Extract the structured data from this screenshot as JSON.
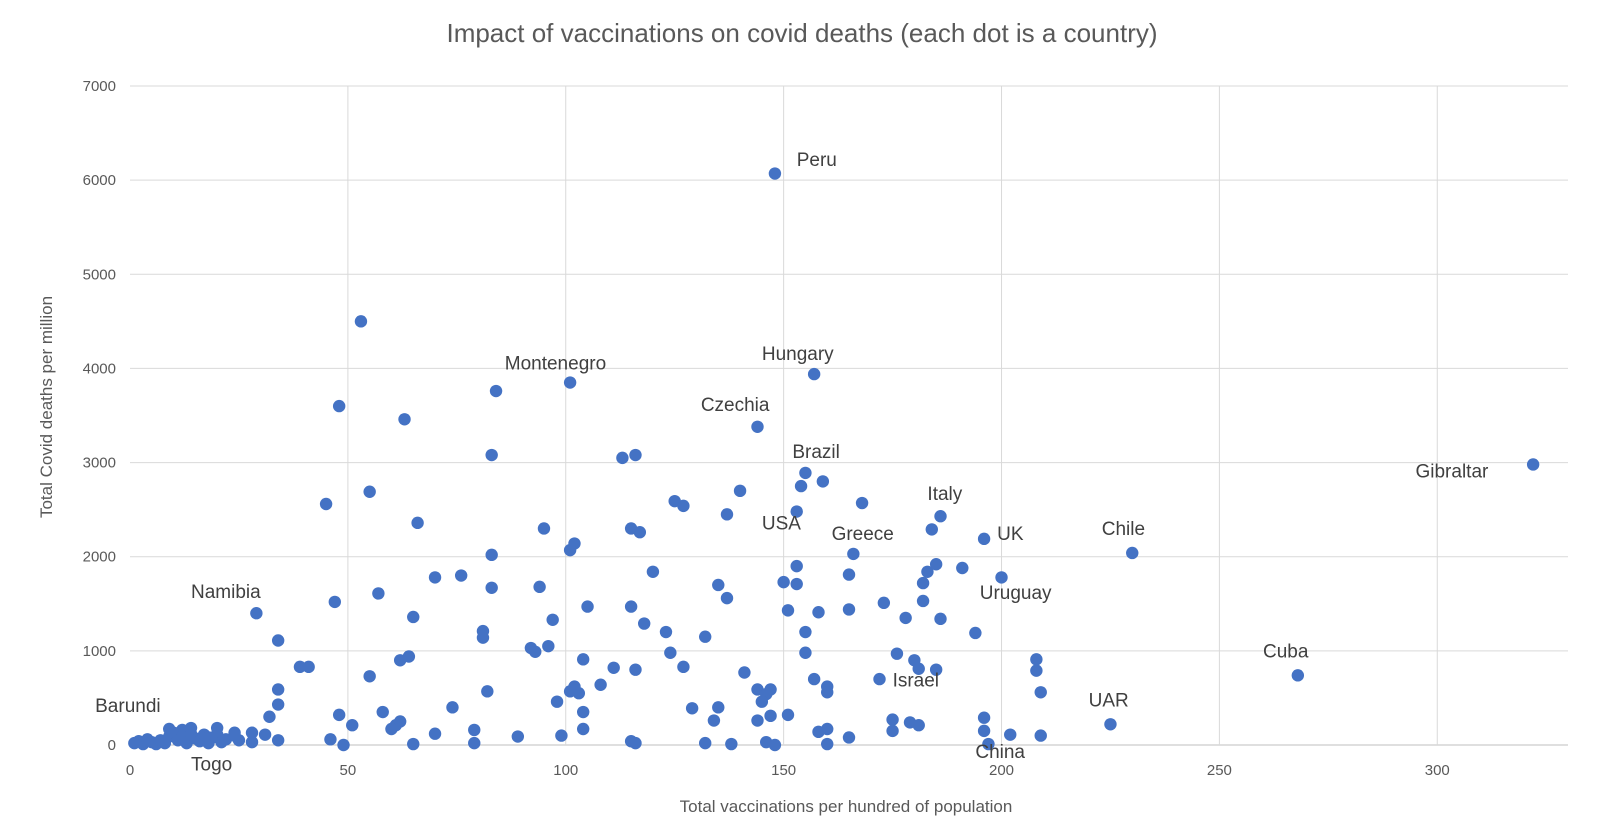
{
  "chart_data": {
    "type": "scatter",
    "title": "Impact of vaccinations on covid deaths (each dot is a country)",
    "xlabel": "Total vaccinations per hundred of population",
    "ylabel": "Total Covid deaths per million",
    "xlim": [
      0,
      330
    ],
    "ylim": [
      0,
      7000
    ],
    "x_ticks": [
      0,
      50,
      100,
      150,
      200,
      250,
      300
    ],
    "y_ticks": [
      0,
      1000,
      2000,
      3000,
      4000,
      5000,
      6000,
      7000
    ],
    "grid": true,
    "color": "#4472C4",
    "points": [
      {
        "x": 148,
        "y": 6070
      },
      {
        "x": 53,
        "y": 4500
      },
      {
        "x": 101,
        "y": 3850
      },
      {
        "x": 84,
        "y": 3760
      },
      {
        "x": 157,
        "y": 3940
      },
      {
        "x": 48,
        "y": 3600
      },
      {
        "x": 63,
        "y": 3460
      },
      {
        "x": 144,
        "y": 3380
      },
      {
        "x": 83,
        "y": 3080
      },
      {
        "x": 113,
        "y": 3050
      },
      {
        "x": 116,
        "y": 3080
      },
      {
        "x": 322,
        "y": 2980
      },
      {
        "x": 155,
        "y": 2890
      },
      {
        "x": 154,
        "y": 2750
      },
      {
        "x": 159,
        "y": 2800
      },
      {
        "x": 55,
        "y": 2690
      },
      {
        "x": 140,
        "y": 2700
      },
      {
        "x": 45,
        "y": 2560
      },
      {
        "x": 125,
        "y": 2590
      },
      {
        "x": 127,
        "y": 2540
      },
      {
        "x": 168,
        "y": 2570
      },
      {
        "x": 153,
        "y": 2480
      },
      {
        "x": 137,
        "y": 2450
      },
      {
        "x": 186,
        "y": 2430
      },
      {
        "x": 66,
        "y": 2360
      },
      {
        "x": 95,
        "y": 2300
      },
      {
        "x": 115,
        "y": 2300
      },
      {
        "x": 117,
        "y": 2260
      },
      {
        "x": 184,
        "y": 2290
      },
      {
        "x": 196,
        "y": 2190
      },
      {
        "x": 102,
        "y": 2140
      },
      {
        "x": 101,
        "y": 2070
      },
      {
        "x": 83,
        "y": 2020
      },
      {
        "x": 166,
        "y": 2030
      },
      {
        "x": 230,
        "y": 2040
      },
      {
        "x": 153,
        "y": 1900
      },
      {
        "x": 185,
        "y": 1920
      },
      {
        "x": 191,
        "y": 1880
      },
      {
        "x": 120,
        "y": 1840
      },
      {
        "x": 183,
        "y": 1840
      },
      {
        "x": 165,
        "y": 1810
      },
      {
        "x": 70,
        "y": 1780
      },
      {
        "x": 76,
        "y": 1800
      },
      {
        "x": 200,
        "y": 1780
      },
      {
        "x": 150,
        "y": 1730
      },
      {
        "x": 153,
        "y": 1710
      },
      {
        "x": 182,
        "y": 1720
      },
      {
        "x": 135,
        "y": 1700
      },
      {
        "x": 94,
        "y": 1680
      },
      {
        "x": 83,
        "y": 1670
      },
      {
        "x": 57,
        "y": 1610
      },
      {
        "x": 137,
        "y": 1560
      },
      {
        "x": 47,
        "y": 1520
      },
      {
        "x": 173,
        "y": 1510
      },
      {
        "x": 182,
        "y": 1530
      },
      {
        "x": 105,
        "y": 1470
      },
      {
        "x": 115,
        "y": 1470
      },
      {
        "x": 151,
        "y": 1430
      },
      {
        "x": 165,
        "y": 1440
      },
      {
        "x": 29,
        "y": 1400
      },
      {
        "x": 158,
        "y": 1410
      },
      {
        "x": 65,
        "y": 1360
      },
      {
        "x": 97,
        "y": 1330
      },
      {
        "x": 178,
        "y": 1350
      },
      {
        "x": 186,
        "y": 1340
      },
      {
        "x": 118,
        "y": 1290
      },
      {
        "x": 81,
        "y": 1210
      },
      {
        "x": 123,
        "y": 1200
      },
      {
        "x": 155,
        "y": 1200
      },
      {
        "x": 194,
        "y": 1190
      },
      {
        "x": 81,
        "y": 1140
      },
      {
        "x": 132,
        "y": 1150
      },
      {
        "x": 34,
        "y": 1110
      },
      {
        "x": 96,
        "y": 1050
      },
      {
        "x": 92,
        "y": 1030
      },
      {
        "x": 93,
        "y": 990
      },
      {
        "x": 124,
        "y": 980
      },
      {
        "x": 155,
        "y": 980
      },
      {
        "x": 176,
        "y": 970
      },
      {
        "x": 64,
        "y": 940
      },
      {
        "x": 62,
        "y": 900
      },
      {
        "x": 104,
        "y": 910
      },
      {
        "x": 180,
        "y": 900
      },
      {
        "x": 208,
        "y": 910
      },
      {
        "x": 39,
        "y": 830
      },
      {
        "x": 41,
        "y": 830
      },
      {
        "x": 111,
        "y": 820
      },
      {
        "x": 127,
        "y": 830
      },
      {
        "x": 116,
        "y": 800
      },
      {
        "x": 181,
        "y": 810
      },
      {
        "x": 185,
        "y": 800
      },
      {
        "x": 208,
        "y": 790
      },
      {
        "x": 141,
        "y": 770
      },
      {
        "x": 268,
        "y": 740
      },
      {
        "x": 55,
        "y": 730
      },
      {
        "x": 157,
        "y": 700
      },
      {
        "x": 172,
        "y": 700
      },
      {
        "x": 108,
        "y": 640
      },
      {
        "x": 102,
        "y": 620
      },
      {
        "x": 160,
        "y": 620
      },
      {
        "x": 34,
        "y": 590
      },
      {
        "x": 144,
        "y": 590
      },
      {
        "x": 147,
        "y": 590
      },
      {
        "x": 101,
        "y": 570
      },
      {
        "x": 82,
        "y": 570
      },
      {
        "x": 103,
        "y": 550
      },
      {
        "x": 146,
        "y": 540
      },
      {
        "x": 160,
        "y": 560
      },
      {
        "x": 209,
        "y": 560
      },
      {
        "x": 145,
        "y": 460
      },
      {
        "x": 98,
        "y": 460
      },
      {
        "x": 34,
        "y": 430
      },
      {
        "x": 74,
        "y": 400
      },
      {
        "x": 129,
        "y": 390
      },
      {
        "x": 135,
        "y": 400
      },
      {
        "x": 58,
        "y": 350
      },
      {
        "x": 104,
        "y": 350
      },
      {
        "x": 32,
        "y": 300
      },
      {
        "x": 48,
        "y": 320
      },
      {
        "x": 147,
        "y": 310
      },
      {
        "x": 151,
        "y": 320
      },
      {
        "x": 196,
        "y": 290
      },
      {
        "x": 62,
        "y": 250
      },
      {
        "x": 134,
        "y": 260
      },
      {
        "x": 144,
        "y": 260
      },
      {
        "x": 175,
        "y": 270
      },
      {
        "x": 179,
        "y": 240
      },
      {
        "x": 181,
        "y": 210
      },
      {
        "x": 225,
        "y": 220
      },
      {
        "x": 51,
        "y": 210
      },
      {
        "x": 61,
        "y": 210
      },
      {
        "x": 60,
        "y": 170
      },
      {
        "x": 79,
        "y": 160
      },
      {
        "x": 104,
        "y": 170
      },
      {
        "x": 160,
        "y": 170
      },
      {
        "x": 175,
        "y": 150
      },
      {
        "x": 158,
        "y": 140
      },
      {
        "x": 196,
        "y": 150
      },
      {
        "x": 31,
        "y": 110
      },
      {
        "x": 70,
        "y": 120
      },
      {
        "x": 89,
        "y": 90
      },
      {
        "x": 99,
        "y": 100
      },
      {
        "x": 165,
        "y": 80
      },
      {
        "x": 202,
        "y": 110
      },
      {
        "x": 209,
        "y": 100
      },
      {
        "x": 46,
        "y": 60
      },
      {
        "x": 34,
        "y": 50
      },
      {
        "x": 115,
        "y": 40
      },
      {
        "x": 116,
        "y": 20
      },
      {
        "x": 79,
        "y": 20
      },
      {
        "x": 49,
        "y": 0
      },
      {
        "x": 65,
        "y": 10
      },
      {
        "x": 132,
        "y": 20
      },
      {
        "x": 138,
        "y": 10
      },
      {
        "x": 146,
        "y": 30
      },
      {
        "x": 148,
        "y": 0
      },
      {
        "x": 160,
        "y": 10
      },
      {
        "x": 197,
        "y": 10
      },
      {
        "x": 1,
        "y": 20
      },
      {
        "x": 2,
        "y": 40
      },
      {
        "x": 3,
        "y": 10
      },
      {
        "x": 4,
        "y": 60
      },
      {
        "x": 5,
        "y": 30
      },
      {
        "x": 6,
        "y": 10
      },
      {
        "x": 7,
        "y": 50
      },
      {
        "x": 8,
        "y": 20
      },
      {
        "x": 9,
        "y": 90
      },
      {
        "x": 9,
        "y": 170
      },
      {
        "x": 10,
        "y": 130
      },
      {
        "x": 11,
        "y": 50
      },
      {
        "x": 12,
        "y": 160
      },
      {
        "x": 12,
        "y": 90
      },
      {
        "x": 13,
        "y": 20
      },
      {
        "x": 14,
        "y": 120
      },
      {
        "x": 15,
        "y": 70
      },
      {
        "x": 16,
        "y": 40
      },
      {
        "x": 17,
        "y": 110
      },
      {
        "x": 18,
        "y": 20
      },
      {
        "x": 19,
        "y": 80
      },
      {
        "x": 20,
        "y": 110
      },
      {
        "x": 20,
        "y": 180
      },
      {
        "x": 21,
        "y": 30
      },
      {
        "x": 22,
        "y": 60
      },
      {
        "x": 24,
        "y": 100
      },
      {
        "x": 25,
        "y": 50
      },
      {
        "x": 28,
        "y": 130
      },
      {
        "x": 28,
        "y": 30
      },
      {
        "x": 14,
        "y": 180
      },
      {
        "x": 18,
        "y": 80
      },
      {
        "x": 24,
        "y": 130
      }
    ],
    "annotations": [
      {
        "text": "Peru",
        "x": 153,
        "y": 6150
      },
      {
        "text": "Montenegro",
        "x": 86,
        "y": 3990
      },
      {
        "text": "Hungary",
        "x": 145,
        "y": 4090
      },
      {
        "text": "Czechia",
        "x": 131,
        "y": 3550
      },
      {
        "text": "Brazil",
        "x": 152,
        "y": 3050
      },
      {
        "text": "Gibraltar",
        "x": 295,
        "y": 2840
      },
      {
        "text": "Italy",
        "x": 183,
        "y": 2600
      },
      {
        "text": "USA",
        "x": 145,
        "y": 2290
      },
      {
        "text": "Greece",
        "x": 161,
        "y": 2180
      },
      {
        "text": "UK",
        "x": 199,
        "y": 2180
      },
      {
        "text": "Chile",
        "x": 223,
        "y": 2230
      },
      {
        "text": "Namibia",
        "x": 14,
        "y": 1560
      },
      {
        "text": "Uruguay",
        "x": 195,
        "y": 1550
      },
      {
        "text": "Cuba",
        "x": 260,
        "y": 930
      },
      {
        "text": "Israel",
        "x": 175,
        "y": 620
      },
      {
        "text": "UAR",
        "x": 220,
        "y": 410
      },
      {
        "text": "Barundi",
        "x": -8,
        "y": 350
      },
      {
        "text": "Togo",
        "x": 14,
        "y": -270
      },
      {
        "text": "China",
        "x": 194,
        "y": -140
      }
    ]
  }
}
